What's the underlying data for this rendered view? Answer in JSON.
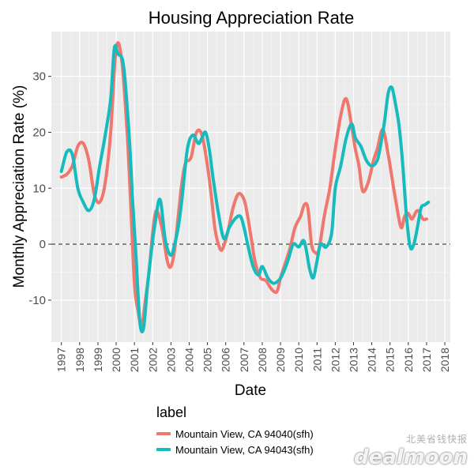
{
  "chart_data": {
    "type": "line",
    "title": "Housing Appreciation Rate",
    "xlabel": "Date",
    "ylabel": "Monthly Appreciation Rate (%)",
    "xlim": [
      1996.45,
      2018.3
    ],
    "ylim": [
      -17.5,
      38
    ],
    "x_ticks": [
      1997,
      1998,
      1999,
      2000,
      2001,
      2002,
      2003,
      2004,
      2005,
      2006,
      2007,
      2008,
      2009,
      2010,
      2011,
      2012,
      2013,
      2014,
      2015,
      2016,
      2017,
      2018
    ],
    "y_ticks": [
      -10,
      0,
      10,
      20,
      30
    ],
    "reference_line": {
      "y": 0,
      "style": "dashed"
    },
    "legend_title": "label",
    "series": [
      {
        "name": "Mountain View, CA 94040(sfh)",
        "color": "#f0776d",
        "x": [
          1997.0,
          1997.3,
          1997.6,
          1997.9,
          1998.2,
          1998.5,
          1998.8,
          1999.1,
          1999.4,
          1999.7,
          2000.0,
          2000.3,
          2000.6,
          2000.8,
          2001.0,
          2001.2,
          2001.4,
          2001.6,
          2001.8,
          2002.0,
          2002.2,
          2002.5,
          2002.8,
          2003.0,
          2003.2,
          2003.4,
          2003.6,
          2003.8,
          2004.1,
          2004.4,
          2004.7,
          2005.0,
          2005.2,
          2005.4,
          2005.6,
          2005.8,
          2006.1,
          2006.4,
          2006.7,
          2007.0,
          2007.2,
          2007.4,
          2007.6,
          2007.9,
          2008.2,
          2008.5,
          2008.8,
          2009.0,
          2009.2,
          2009.5,
          2009.8,
          2010.1,
          2010.3,
          2010.5,
          2010.7,
          2010.9,
          2011.1,
          2011.4,
          2011.7,
          2012.0,
          2012.3,
          2012.6,
          2012.9,
          2013.1,
          2013.3,
          2013.5,
          2013.8,
          2014.1,
          2014.3,
          2014.6,
          2014.9,
          2015.1,
          2015.3,
          2015.6,
          2015.8,
          2016.0,
          2016.2,
          2016.5,
          2016.8,
          2017.0
        ],
        "values": [
          12,
          12.5,
          14,
          17.5,
          18,
          15,
          9,
          7.5,
          11,
          20,
          35,
          33,
          20,
          7,
          -7,
          -12,
          -14.5,
          -10,
          -5,
          2,
          6,
          3,
          -3,
          -4,
          -1,
          5,
          11,
          14.5,
          15.5,
          20,
          19.5,
          14,
          9,
          3,
          0,
          -1,
          2,
          6.5,
          9,
          8,
          5,
          1,
          -3,
          -6,
          -6.5,
          -8,
          -8.5,
          -6,
          -4,
          -1,
          3,
          5,
          7,
          6.5,
          0,
          -1.5,
          -1,
          5,
          10,
          17,
          23,
          26,
          21,
          17,
          14,
          9.5,
          11,
          15,
          17,
          20.5,
          16,
          12,
          8,
          3,
          5,
          5.5,
          4.5,
          6,
          4.5,
          4.5
        ]
      },
      {
        "name": "Mountain View, CA 94043(sfh)",
        "color": "#16bbbd",
        "x": [
          1997.0,
          1997.3,
          1997.6,
          1997.9,
          1998.2,
          1998.5,
          1998.8,
          1999.1,
          1999.4,
          1999.7,
          1999.9,
          2000.1,
          2000.4,
          2000.7,
          2000.9,
          2001.1,
          2001.3,
          2001.5,
          2001.7,
          2001.9,
          2002.1,
          2002.4,
          2002.7,
          2003.0,
          2003.2,
          2003.4,
          2003.6,
          2003.9,
          2004.2,
          2004.5,
          2004.7,
          2004.9,
          2005.1,
          2005.3,
          2005.6,
          2005.9,
          2006.2,
          2006.5,
          2006.8,
          2007.0,
          2007.2,
          2007.5,
          2007.8,
          2008.0,
          2008.3,
          2008.6,
          2008.9,
          2009.1,
          2009.4,
          2009.7,
          2010.0,
          2010.3,
          2010.6,
          2010.8,
          2011.0,
          2011.2,
          2011.5,
          2011.8,
          2012.0,
          2012.3,
          2012.6,
          2012.9,
          2013.1,
          2013.4,
          2013.7,
          2014.0,
          2014.3,
          2014.5,
          2014.7,
          2014.9,
          2015.1,
          2015.3,
          2015.5,
          2015.7,
          2015.9,
          2016.1,
          2016.3,
          2016.5,
          2016.7,
          2016.9,
          2017.1
        ],
        "values": [
          13,
          16.5,
          16,
          10,
          7.5,
          6,
          8,
          14,
          19.5,
          26,
          35,
          34,
          32,
          20,
          8,
          -3,
          -14,
          -15,
          -8,
          -2,
          3,
          8,
          0.5,
          -2,
          0,
          3,
          8,
          17,
          19.5,
          18,
          19,
          20,
          17,
          12,
          5.5,
          1,
          3,
          4.5,
          5,
          3,
          0,
          -4,
          -5.5,
          -4,
          -6,
          -7,
          -6.5,
          -5.5,
          -3,
          0,
          -0.5,
          0.5,
          -4.5,
          -6,
          -3,
          0,
          -0.5,
          2,
          10,
          14,
          19,
          21.5,
          19,
          17.5,
          15,
          14,
          15,
          18,
          22,
          27,
          28,
          25,
          21,
          14,
          5,
          -0.5,
          0,
          3,
          6.5,
          7,
          7.5
        ]
      }
    ]
  },
  "watermark": {
    "cn": "北美省钱快报",
    "en": "dealmoon"
  }
}
